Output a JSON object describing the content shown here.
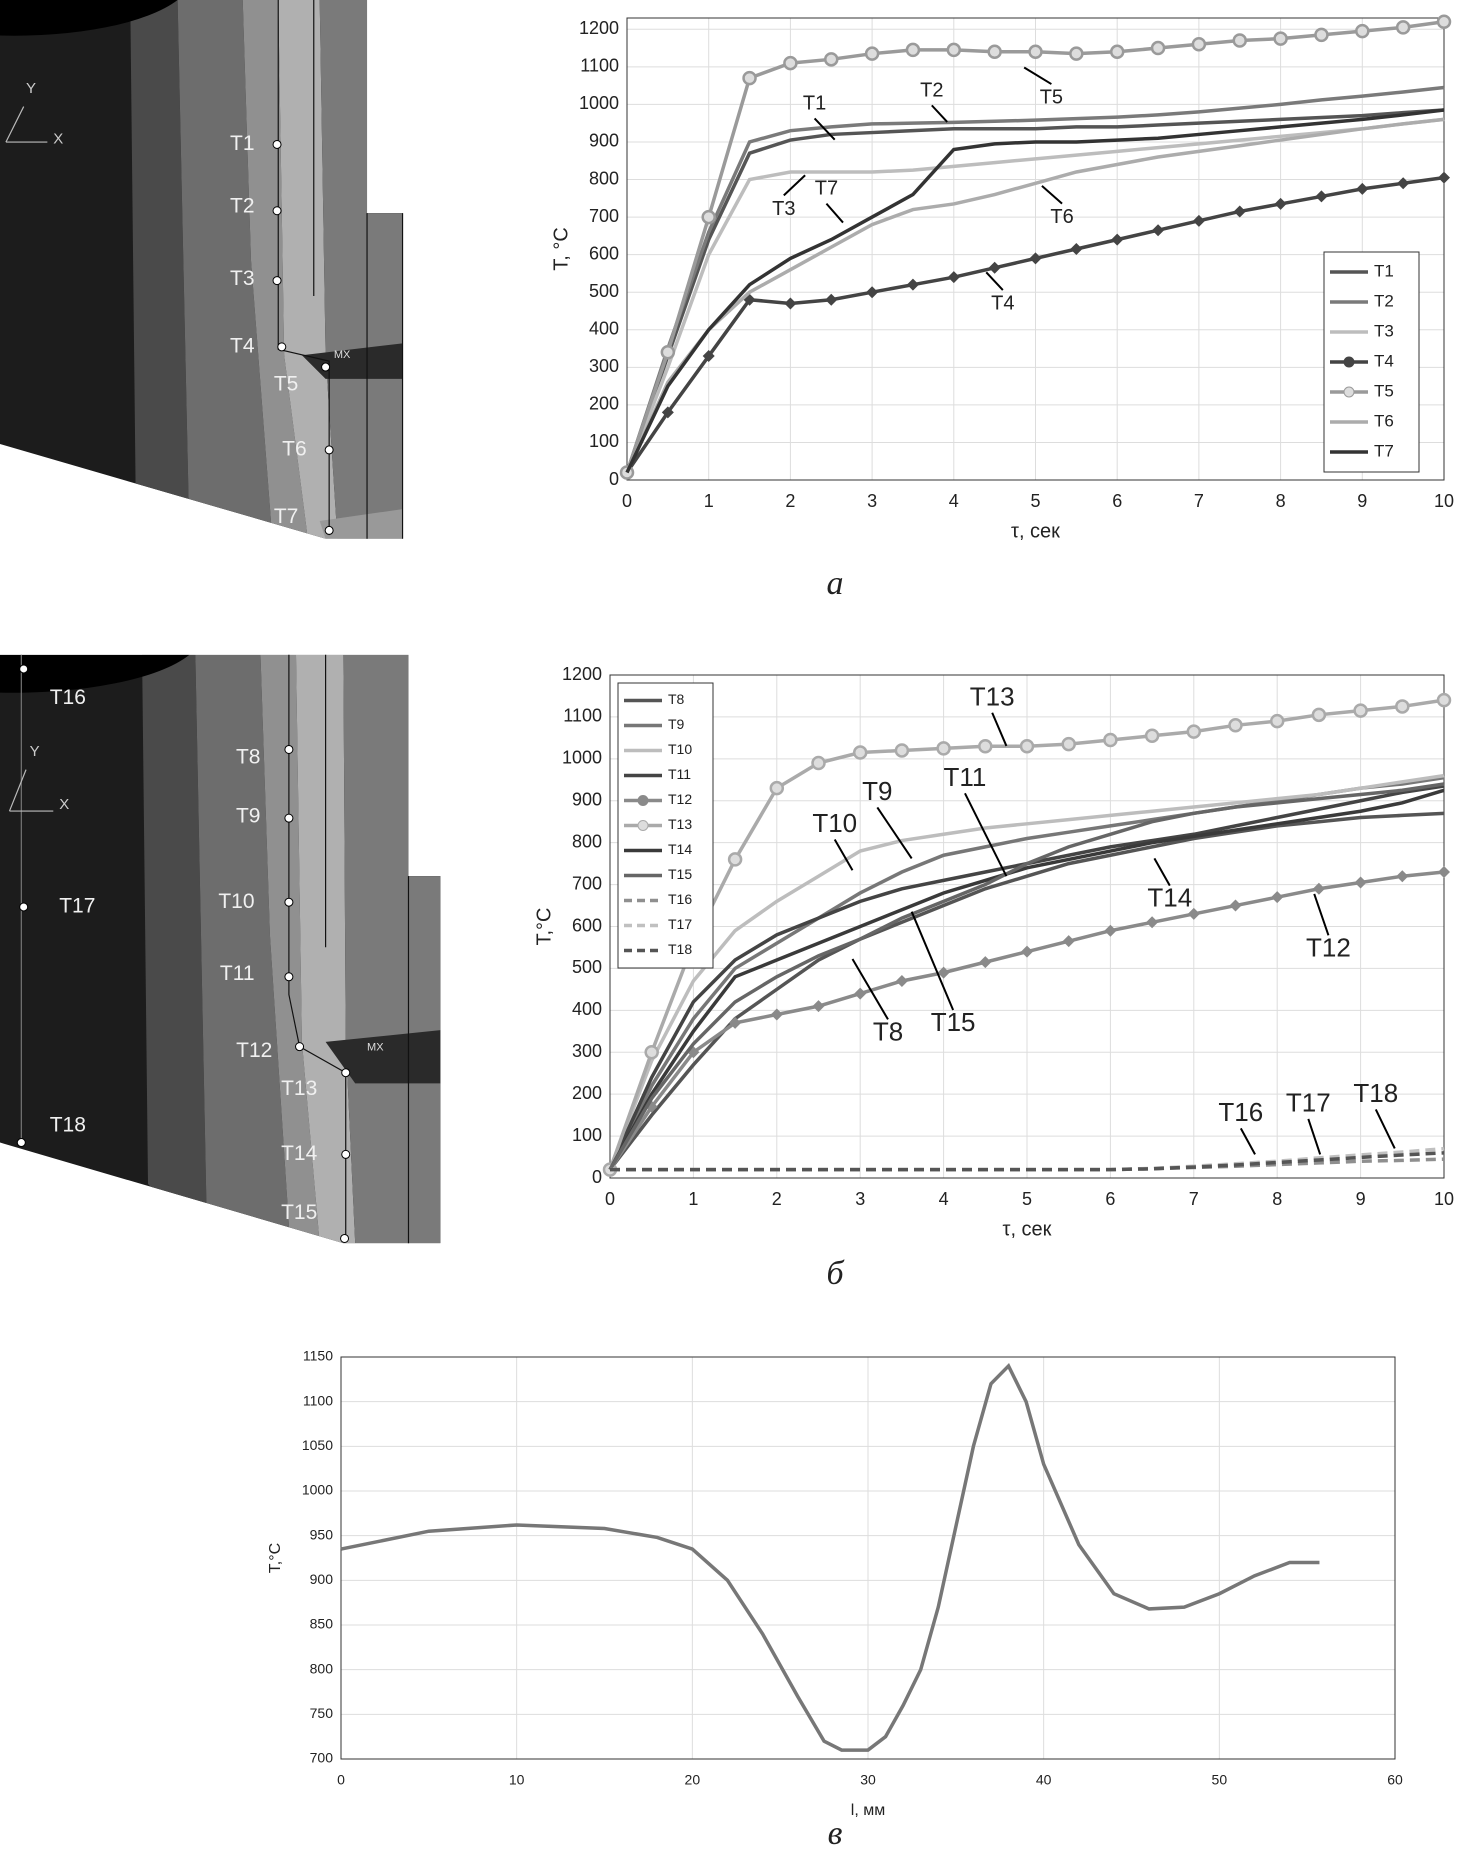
{
  "chart_data": [
    {
      "type": "line",
      "x_label": "τ, сек",
      "y_label": "T, °C",
      "xlim": [
        0,
        10
      ],
      "ylim": [
        0,
        1230
      ],
      "xticks": [
        0,
        1,
        2,
        3,
        4,
        5,
        6,
        7,
        8,
        9,
        10
      ],
      "yticks": [
        0,
        100,
        200,
        300,
        400,
        500,
        600,
        700,
        800,
        900,
        1000,
        1100,
        1200
      ],
      "grid": true,
      "legend": "lower right",
      "x": [
        0,
        0.5,
        1,
        1.5,
        2,
        2.5,
        3,
        3.5,
        4,
        4.5,
        5,
        5.5,
        6,
        6.5,
        7,
        7.5,
        8,
        8.5,
        9,
        9.5,
        10
      ],
      "series": [
        {
          "name": "T1",
          "color": "#555555",
          "values": [
            20,
            330,
            640,
            870,
            905,
            920,
            925,
            930,
            935,
            935,
            935,
            940,
            940,
            945,
            950,
            955,
            960,
            965,
            970,
            978,
            985
          ]
        },
        {
          "name": "T2",
          "color": "#7a7a7a",
          "values": [
            20,
            350,
            660,
            900,
            930,
            940,
            948,
            950,
            952,
            955,
            958,
            962,
            966,
            972,
            980,
            990,
            1000,
            1012,
            1022,
            1033,
            1045
          ]
        },
        {
          "name": "T3",
          "color": "#bdbdbd",
          "values": [
            20,
            300,
            600,
            800,
            820,
            820,
            820,
            825,
            835,
            845,
            855,
            865,
            875,
            885,
            895,
            905,
            915,
            925,
            935,
            948,
            960
          ]
        },
        {
          "name": "T4",
          "color": "#444444",
          "marker": "diamond",
          "values": [
            20,
            180,
            330,
            480,
            470,
            480,
            500,
            520,
            540,
            565,
            590,
            615,
            640,
            665,
            690,
            715,
            735,
            755,
            775,
            790,
            805
          ]
        },
        {
          "name": "T5",
          "color": "#9a9a9a",
          "marker": "circle",
          "values": [
            20,
            340,
            700,
            1070,
            1110,
            1120,
            1135,
            1145,
            1145,
            1140,
            1140,
            1135,
            1140,
            1150,
            1160,
            1170,
            1175,
            1185,
            1195,
            1205,
            1220
          ]
        },
        {
          "name": "T6",
          "color": "#acacac",
          "values": [
            20,
            260,
            400,
            500,
            560,
            620,
            680,
            720,
            735,
            760,
            790,
            820,
            840,
            860,
            875,
            890,
            905,
            920,
            935,
            948,
            960
          ]
        },
        {
          "name": "T7",
          "color": "#333333",
          "values": [
            20,
            250,
            400,
            520,
            590,
            640,
            700,
            760,
            880,
            895,
            900,
            900,
            905,
            910,
            920,
            930,
            940,
            950,
            960,
            972,
            985
          ]
        }
      ],
      "annotations": [
        "T1",
        "T2",
        "T5",
        "T3",
        "T7",
        "T6",
        "T4"
      ]
    },
    {
      "type": "line",
      "x_label": "τ, сек",
      "y_label": "T,°C",
      "xlim": [
        0,
        10
      ],
      "ylim": [
        0,
        1200
      ],
      "xticks": [
        0,
        1,
        2,
        3,
        4,
        5,
        6,
        7,
        8,
        9,
        10
      ],
      "yticks": [
        0,
        100,
        200,
        300,
        400,
        500,
        600,
        700,
        800,
        900,
        1000,
        1100,
        1200
      ],
      "grid": true,
      "legend": "upper left",
      "x": [
        0,
        0.5,
        1,
        1.5,
        2,
        2.5,
        3,
        3.5,
        4,
        4.5,
        5,
        5.5,
        6,
        6.5,
        7,
        7.5,
        8,
        8.5,
        9,
        9.5,
        10
      ],
      "series": [
        {
          "name": "T8",
          "color": "#555555",
          "values": [
            20,
            150,
            270,
            380,
            450,
            520,
            570,
            610,
            650,
            690,
            720,
            750,
            770,
            790,
            810,
            825,
            840,
            850,
            860,
            865,
            870
          ]
        },
        {
          "name": "T9",
          "color": "#777777",
          "values": [
            20,
            220,
            380,
            500,
            560,
            620,
            680,
            730,
            770,
            790,
            810,
            825,
            840,
            855,
            870,
            885,
            900,
            915,
            930,
            940,
            955
          ]
        },
        {
          "name": "T10",
          "color": "#bdbdbd",
          "values": [
            20,
            280,
            470,
            590,
            660,
            720,
            780,
            805,
            820,
            835,
            845,
            855,
            865,
            875,
            885,
            895,
            905,
            915,
            930,
            945,
            960
          ]
        },
        {
          "name": "T11",
          "color": "#444444",
          "values": [
            20,
            240,
            420,
            520,
            580,
            620,
            660,
            690,
            710,
            730,
            750,
            770,
            790,
            805,
            820,
            840,
            860,
            880,
            900,
            920,
            935
          ]
        },
        {
          "name": "T12",
          "color": "#8a8a8a",
          "marker": "diamond",
          "values": [
            20,
            170,
            300,
            370,
            390,
            410,
            440,
            470,
            490,
            515,
            540,
            565,
            590,
            610,
            630,
            650,
            670,
            690,
            705,
            720,
            730
          ]
        },
        {
          "name": "T13",
          "color": "#aaaaaa",
          "marker": "circle",
          "values": [
            20,
            300,
            560,
            760,
            930,
            990,
            1015,
            1020,
            1025,
            1030,
            1030,
            1035,
            1045,
            1055,
            1065,
            1080,
            1090,
            1105,
            1115,
            1125,
            1140
          ]
        },
        {
          "name": "T14",
          "color": "#3a3a3a",
          "values": [
            20,
            200,
            350,
            480,
            520,
            560,
            600,
            640,
            680,
            710,
            740,
            760,
            780,
            800,
            815,
            830,
            845,
            860,
            875,
            895,
            925
          ]
        },
        {
          "name": "T15",
          "color": "#666666",
          "values": [
            20,
            190,
            320,
            420,
            480,
            530,
            570,
            620,
            660,
            700,
            750,
            790,
            820,
            850,
            870,
            885,
            895,
            905,
            915,
            925,
            940
          ]
        },
        {
          "name": "T16",
          "color": "#8f8f8f",
          "dash": true,
          "values": [
            20,
            20,
            20,
            20,
            20,
            20,
            20,
            20,
            20,
            20,
            20,
            20,
            20,
            22,
            25,
            28,
            32,
            36,
            40,
            42,
            45
          ]
        },
        {
          "name": "T17",
          "color": "#c0c0c0",
          "dash": true,
          "values": [
            20,
            20,
            20,
            20,
            20,
            20,
            20,
            20,
            20,
            20,
            20,
            20,
            20,
            23,
            28,
            34,
            40,
            48,
            55,
            62,
            70
          ]
        },
        {
          "name": "T18",
          "color": "#555555",
          "dash": true,
          "values": [
            20,
            20,
            20,
            20,
            20,
            20,
            20,
            20,
            20,
            20,
            20,
            20,
            20,
            22,
            26,
            31,
            37,
            43,
            49,
            55,
            60
          ]
        }
      ],
      "annotations": [
        "T13",
        "T11",
        "T9",
        "T10",
        "T14",
        "T12",
        "T8",
        "T15",
        "T16",
        "T17",
        "T18"
      ]
    },
    {
      "type": "line",
      "x_label": "l, мм",
      "y_label": "T,°C",
      "xlim": [
        0,
        60
      ],
      "ylim": [
        700,
        1150
      ],
      "xticks": [
        0,
        10,
        20,
        30,
        40,
        50,
        60
      ],
      "yticks": [
        700,
        750,
        800,
        850,
        900,
        950,
        1000,
        1050,
        1100,
        1150
      ],
      "grid": true,
      "x": [
        0,
        5,
        10,
        15,
        18,
        20,
        22,
        24,
        26,
        27.5,
        28.5,
        30,
        31,
        32,
        33,
        34,
        35,
        36,
        37,
        38,
        39,
        40,
        42,
        44,
        46,
        48,
        50,
        52,
        54,
        55.7
      ],
      "series": [
        {
          "color": "#777777",
          "values": [
            935,
            955,
            962,
            958,
            948,
            935,
            900,
            840,
            770,
            720,
            710,
            710,
            725,
            760,
            800,
            870,
            960,
            1050,
            1120,
            1140,
            1100,
            1030,
            940,
            885,
            868,
            870,
            885,
            905,
            920,
            920
          ]
        }
      ]
    }
  ],
  "captions": [
    "а",
    "б",
    "в"
  ],
  "model_a": {
    "axis_y": "Y",
    "axis_x": "X",
    "max_marker": "MX",
    "labels": [
      "T1",
      "T2",
      "T3",
      "T4",
      "T5",
      "T6",
      "T7"
    ]
  },
  "model_b": {
    "axis_y": "Y",
    "axis_x": "X",
    "max_marker": "MX",
    "labels": [
      "T8",
      "T9",
      "T10",
      "T11",
      "T12",
      "T13",
      "T14",
      "T15",
      "T16",
      "T17",
      "T18"
    ]
  }
}
